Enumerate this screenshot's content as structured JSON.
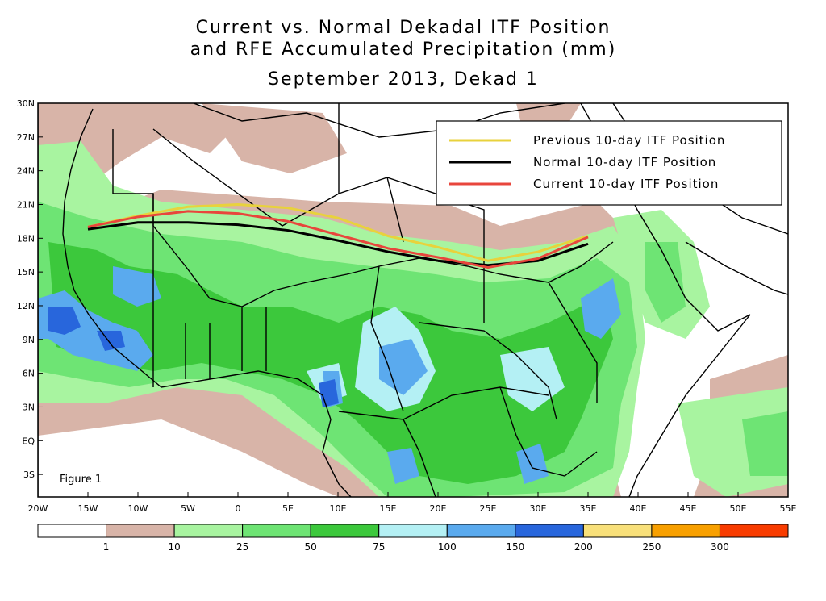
{
  "title": {
    "line1": "Current vs. Normal Dekadal ITF Position",
    "line2": "and RFE Accumulated Precipitation (mm)",
    "line3": "September 2013, Dekad 1"
  },
  "figure_label": "Figure 1",
  "lat_ticks": [
    "30N",
    "27N",
    "24N",
    "21N",
    "18N",
    "15N",
    "12N",
    "9N",
    "6N",
    "3N",
    "EQ",
    "3S"
  ],
  "lon_ticks": [
    "20W",
    "15W",
    "10W",
    "5W",
    "0",
    "5E",
    "10E",
    "15E",
    "20E",
    "25E",
    "30E",
    "35E",
    "40E",
    "45E",
    "50E",
    "55E"
  ],
  "legend": {
    "items": [
      {
        "label": "Previous 10-day ITF Position",
        "color": "#e8d23c"
      },
      {
        "label": "Normal 10-day ITF Position",
        "color": "#000000"
      },
      {
        "label": "Current 10-day ITF Position",
        "color": "#e8463c"
      }
    ]
  },
  "colorbar": {
    "colors": [
      "#ffffff",
      "#d8b4a8",
      "#a8f4a0",
      "#6ee474",
      "#3cc83c",
      "#b4f0f4",
      "#5aaaee",
      "#2866dc",
      "#f8e07a",
      "#f8a000",
      "#f83c00"
    ],
    "labels": [
      "1",
      "10",
      "25",
      "50",
      "75",
      "100",
      "150",
      "200",
      "250",
      "300"
    ]
  },
  "itf_lines": [
    {
      "name": "previous",
      "color": "#e8d23c",
      "points": [
        [
          -15,
          19.0
        ],
        [
          -10,
          20.0
        ],
        [
          -5,
          20.8
        ],
        [
          0,
          21.0
        ],
        [
          5,
          20.7
        ],
        [
          10,
          19.8
        ],
        [
          15,
          18.2
        ],
        [
          20,
          17.2
        ],
        [
          25,
          16.0
        ],
        [
          30,
          16.8
        ],
        [
          35,
          18.2
        ]
      ]
    },
    {
      "name": "normal",
      "color": "#000000",
      "points": [
        [
          -15,
          18.8
        ],
        [
          -10,
          19.4
        ],
        [
          -5,
          19.4
        ],
        [
          0,
          19.2
        ],
        [
          5,
          18.7
        ],
        [
          10,
          17.8
        ],
        [
          15,
          16.8
        ],
        [
          20,
          16.0
        ],
        [
          25,
          15.6
        ],
        [
          30,
          16.0
        ],
        [
          35,
          17.5
        ]
      ]
    },
    {
      "name": "current",
      "color": "#e8463c",
      "points": [
        [
          -15,
          19.0
        ],
        [
          -10,
          19.9
        ],
        [
          -5,
          20.4
        ],
        [
          0,
          20.2
        ],
        [
          5,
          19.5
        ],
        [
          10,
          18.3
        ],
        [
          15,
          17.1
        ],
        [
          20,
          16.3
        ],
        [
          25,
          15.4
        ],
        [
          30,
          16.2
        ],
        [
          35,
          18.1
        ]
      ]
    }
  ]
}
